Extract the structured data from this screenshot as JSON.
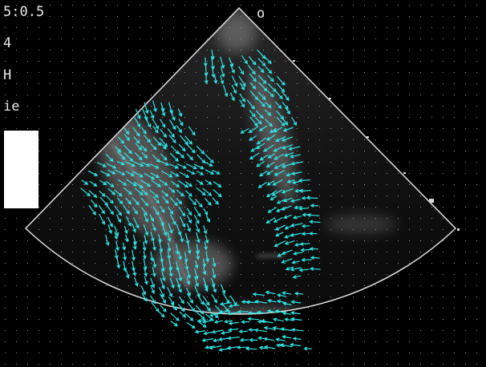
{
  "overlay": {
    "scale": "5:0.5",
    "lines": [
      "4",
      "H",
      "ie"
    ],
    "marker": "o"
  }
}
